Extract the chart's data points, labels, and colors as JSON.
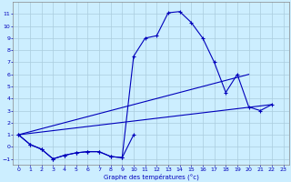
{
  "xlabel": "Graphe des températures (°c)",
  "background_color": "#cceeff",
  "grid_color": "#aaccdd",
  "line_color": "#0000bb",
  "ylim": [
    -1.5,
    12
  ],
  "xlim": [
    -0.5,
    23.5
  ],
  "yticks": [
    -1,
    0,
    1,
    2,
    3,
    4,
    5,
    6,
    7,
    8,
    9,
    10,
    11
  ],
  "xticks": [
    0,
    1,
    2,
    3,
    4,
    5,
    6,
    7,
    8,
    9,
    10,
    11,
    12,
    13,
    14,
    15,
    16,
    17,
    18,
    19,
    20,
    21,
    22,
    23
  ],
  "flat_x": [
    0,
    1,
    2,
    3,
    4,
    5,
    6,
    7,
    8,
    9,
    10
  ],
  "flat_y": [
    1.0,
    0.2,
    -0.2,
    -1.0,
    -0.7,
    -0.5,
    -0.4,
    -0.4,
    -0.8,
    -0.9,
    1.0
  ],
  "full_x": [
    0,
    1,
    2,
    3,
    4,
    5,
    6,
    7,
    8,
    9,
    10,
    11,
    12,
    13,
    14,
    15,
    16,
    17,
    18,
    19,
    20,
    21,
    22
  ],
  "full_y": [
    1.0,
    0.2,
    -0.2,
    -1.0,
    -0.7,
    -0.5,
    -0.4,
    -0.4,
    -0.8,
    -0.9,
    7.5,
    9.0,
    9.2,
    11.1,
    11.2,
    10.3,
    9.0,
    7.0,
    4.5,
    6.0,
    3.3,
    3.0,
    3.5
  ],
  "line1_x": [
    0,
    22
  ],
  "line1_y": [
    1.0,
    3.5
  ],
  "line2_x": [
    0,
    20
  ],
  "line2_y": [
    1.0,
    6.0
  ]
}
